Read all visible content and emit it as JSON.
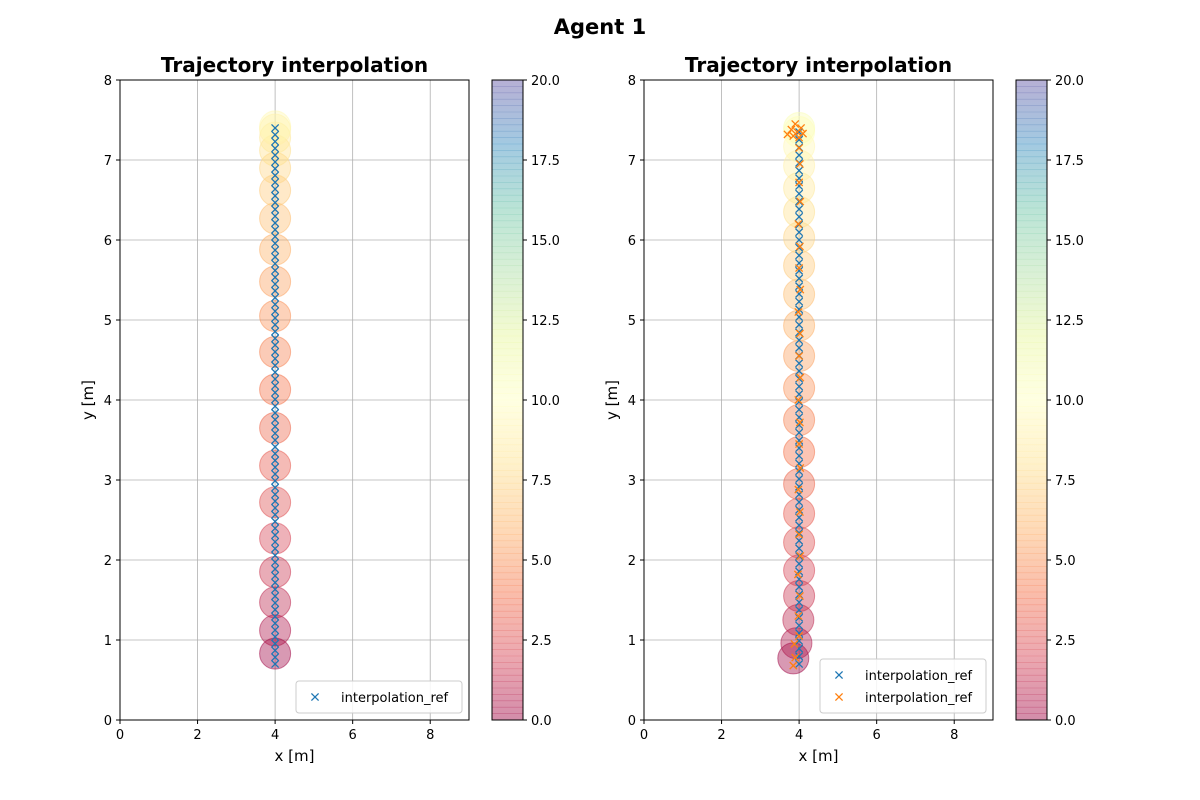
{
  "figure": {
    "suptitle": "Agent 1"
  },
  "colors": {
    "ref_series": "#1f77b4",
    "actual_series": "#ff7f0e",
    "grid": "#b0b0b0",
    "axes": "#000000",
    "colormap": [
      "#9e0142",
      "#d53e4f",
      "#f46d43",
      "#fdae61",
      "#fee08b",
      "#ffffbf",
      "#e6f598",
      "#abdda4",
      "#66c2a5",
      "#3288bd",
      "#5e4fa2"
    ]
  },
  "chart_data": [
    {
      "type": "scatter",
      "title": "Trajectory interpolation",
      "xlabel": "x [m]",
      "ylabel": "y [m]",
      "xlim": [
        0,
        9
      ],
      "ylim": [
        0,
        8
      ],
      "xticks": [
        "0",
        "2",
        "4",
        "6",
        "8"
      ],
      "yticks": [
        "0",
        "1",
        "2",
        "3",
        "4",
        "5",
        "6",
        "7",
        "8"
      ],
      "grid": true,
      "legend_position": "lower-right",
      "circles": {
        "radius": 0.4,
        "alpha": 0.4,
        "colorbar_ticks": [
          "0.0",
          "2.5",
          "5.0",
          "7.5",
          "10.0",
          "12.5",
          "15.0",
          "17.5",
          "20.0"
        ],
        "colorbar_range": [
          0,
          20
        ],
        "centers": [
          {
            "x": 4.0,
            "y": 0.83,
            "c": 0.0
          },
          {
            "x": 4.0,
            "y": 1.12,
            "c": 0.5
          },
          {
            "x": 4.0,
            "y": 1.47,
            "c": 1.0
          },
          {
            "x": 4.0,
            "y": 1.85,
            "c": 1.5
          },
          {
            "x": 4.0,
            "y": 2.27,
            "c": 2.0
          },
          {
            "x": 4.0,
            "y": 2.72,
            "c": 2.5
          },
          {
            "x": 4.0,
            "y": 3.18,
            "c": 3.0
          },
          {
            "x": 4.0,
            "y": 3.65,
            "c": 3.5
          },
          {
            "x": 4.0,
            "y": 4.13,
            "c": 4.0
          },
          {
            "x": 4.0,
            "y": 4.6,
            "c": 4.5
          },
          {
            "x": 4.0,
            "y": 5.05,
            "c": 5.0
          },
          {
            "x": 4.0,
            "y": 5.48,
            "c": 5.5
          },
          {
            "x": 4.0,
            "y": 5.88,
            "c": 6.0
          },
          {
            "x": 4.0,
            "y": 6.27,
            "c": 6.5
          },
          {
            "x": 4.0,
            "y": 6.62,
            "c": 7.0
          },
          {
            "x": 4.0,
            "y": 6.9,
            "c": 7.5
          },
          {
            "x": 4.0,
            "y": 7.12,
            "c": 8.0
          },
          {
            "x": 4.0,
            "y": 7.28,
            "c": 8.5
          },
          {
            "x": 4.0,
            "y": 7.38,
            "c": 9.0
          },
          {
            "x": 4.0,
            "y": 7.42,
            "c": 9.5
          }
        ]
      },
      "series": [
        {
          "name": "interpolation_ref",
          "x_constant": 4.0,
          "y_start": 0.7,
          "y_end": 7.4,
          "count": 80
        }
      ]
    },
    {
      "type": "scatter",
      "title": "Trajectory interpolation",
      "xlabel": "x [m]",
      "ylabel": "y [m]",
      "xlim": [
        0,
        9
      ],
      "ylim": [
        0,
        8
      ],
      "xticks": [
        "0",
        "2",
        "4",
        "6",
        "8"
      ],
      "yticks": [
        "0",
        "1",
        "2",
        "3",
        "4",
        "5",
        "6",
        "7",
        "8"
      ],
      "grid": true,
      "legend_position": "lower-right",
      "circles": {
        "radius": 0.4,
        "alpha": 0.4,
        "colorbar_ticks": [
          "0.0",
          "2.5",
          "5.0",
          "7.5",
          "10.0",
          "12.5",
          "15.0",
          "17.5",
          "20.0"
        ],
        "colorbar_range": [
          0,
          20
        ],
        "centers": [
          {
            "x": 3.85,
            "y": 0.77,
            "c": 0.0
          },
          {
            "x": 3.93,
            "y": 0.96,
            "c": 0.5
          },
          {
            "x": 3.98,
            "y": 1.25,
            "c": 1.0
          },
          {
            "x": 4.0,
            "y": 1.55,
            "c": 1.5
          },
          {
            "x": 4.0,
            "y": 1.87,
            "c": 2.0
          },
          {
            "x": 4.0,
            "y": 2.22,
            "c": 2.5
          },
          {
            "x": 4.0,
            "y": 2.58,
            "c": 3.0
          },
          {
            "x": 4.0,
            "y": 2.95,
            "c": 3.5
          },
          {
            "x": 4.0,
            "y": 3.35,
            "c": 4.0
          },
          {
            "x": 4.0,
            "y": 3.75,
            "c": 4.5
          },
          {
            "x": 4.0,
            "y": 4.15,
            "c": 5.0
          },
          {
            "x": 4.0,
            "y": 4.55,
            "c": 5.5
          },
          {
            "x": 4.0,
            "y": 4.93,
            "c": 6.0
          },
          {
            "x": 4.0,
            "y": 5.32,
            "c": 6.5
          },
          {
            "x": 4.0,
            "y": 5.68,
            "c": 7.0
          },
          {
            "x": 4.0,
            "y": 6.03,
            "c": 7.5
          },
          {
            "x": 4.0,
            "y": 6.35,
            "c": 8.0
          },
          {
            "x": 4.0,
            "y": 6.65,
            "c": 8.5
          },
          {
            "x": 4.0,
            "y": 6.93,
            "c": 9.0
          },
          {
            "x": 4.0,
            "y": 7.17,
            "c": 9.5
          },
          {
            "x": 4.0,
            "y": 7.35,
            "c": 10.0
          },
          {
            "x": 4.0,
            "y": 7.4,
            "c": 10.5
          }
        ]
      },
      "series": [
        {
          "name": "interpolation_ref",
          "x_constant": 4.0,
          "y_start": 0.7,
          "y_end": 7.35,
          "count": 70
        },
        {
          "name": "interpolation_ref",
          "points": [
            [
              3.85,
              0.68
            ],
            [
              3.9,
              0.78
            ],
            [
              3.88,
              0.95
            ],
            [
              4.0,
              1.05
            ],
            [
              3.98,
              1.3
            ],
            [
              4.02,
              1.55
            ],
            [
              3.97,
              1.82
            ],
            [
              4.03,
              2.05
            ],
            [
              4.0,
              2.32
            ],
            [
              4.02,
              2.6
            ],
            [
              3.98,
              2.88
            ],
            [
              4.03,
              3.15
            ],
            [
              4.0,
              3.45
            ],
            [
              4.02,
              3.72
            ],
            [
              3.98,
              4.0
            ],
            [
              4.03,
              4.28
            ],
            [
              4.0,
              4.55
            ],
            [
              4.02,
              4.83
            ],
            [
              3.98,
              5.1
            ],
            [
              4.03,
              5.38
            ],
            [
              4.0,
              5.65
            ],
            [
              4.02,
              5.92
            ],
            [
              3.98,
              6.2
            ],
            [
              4.03,
              6.48
            ],
            [
              4.0,
              6.72
            ],
            [
              4.02,
              6.95
            ],
            [
              4.0,
              7.15
            ],
            [
              3.7,
              7.32
            ],
            [
              3.8,
              7.38
            ],
            [
              3.9,
              7.45
            ],
            [
              3.95,
              7.35
            ],
            [
              4.05,
              7.4
            ],
            [
              4.1,
              7.33
            ],
            [
              3.85,
              7.3
            ],
            [
              4.0,
              7.28
            ]
          ]
        }
      ]
    }
  ]
}
